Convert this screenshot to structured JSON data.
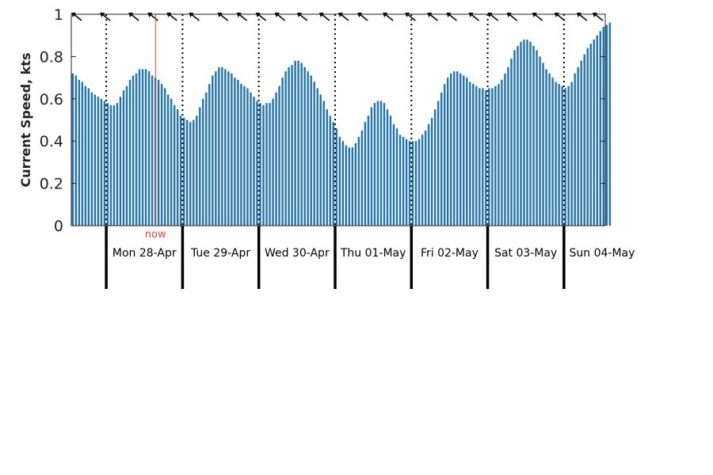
{
  "chart_data": {
    "type": "bar",
    "title": "",
    "xlabel": "",
    "ylabel": "Current Speed, kts",
    "ylim": [
      0,
      1
    ],
    "yticks": [
      0,
      0.2,
      0.4,
      0.6,
      0.8,
      1
    ],
    "ytick_labels": [
      "0",
      "0.2",
      "0.4",
      "0.6",
      "0.8",
      "1"
    ],
    "x_range_hours": [
      0,
      168
    ],
    "x_start_offset_days": 0,
    "bar_interval_hours": 1,
    "day_labels": [
      "Mon 28-Apr",
      "Tue 29-Apr",
      "Wed 30-Apr",
      "Thu 01-May",
      "Fri 02-May",
      "Sat 03-May",
      "Sun 04-May"
    ],
    "day_boundaries_hours": [
      11,
      35,
      59,
      83,
      107,
      131,
      155
    ],
    "now_label": "now",
    "now_hour": 26.5,
    "grid": false,
    "colors": {
      "bar": "#1f74b0",
      "now": "#e8423c",
      "axis": "#222222",
      "divider": "#000000"
    },
    "direction_arrows_icon": "arrow-icon",
    "arrow_hours": [
      2,
      11,
      20,
      26,
      32,
      39,
      48,
      54,
      60,
      66,
      73,
      80,
      86,
      92,
      100,
      107,
      114,
      120,
      127,
      133,
      139,
      147,
      154,
      161,
      166
    ],
    "values": [
      0.72,
      0.71,
      0.69,
      0.68,
      0.66,
      0.65,
      0.63,
      0.62,
      0.61,
      0.6,
      0.59,
      0.58,
      0.57,
      0.57,
      0.58,
      0.61,
      0.64,
      0.66,
      0.69,
      0.71,
      0.72,
      0.74,
      0.74,
      0.74,
      0.73,
      0.71,
      0.7,
      0.69,
      0.67,
      0.65,
      0.62,
      0.6,
      0.57,
      0.55,
      0.52,
      0.51,
      0.5,
      0.49,
      0.5,
      0.52,
      0.56,
      0.6,
      0.63,
      0.67,
      0.71,
      0.73,
      0.75,
      0.75,
      0.74,
      0.73,
      0.72,
      0.7,
      0.69,
      0.67,
      0.66,
      0.65,
      0.63,
      0.61,
      0.59,
      0.58,
      0.57,
      0.58,
      0.58,
      0.6,
      0.63,
      0.66,
      0.7,
      0.73,
      0.75,
      0.76,
      0.78,
      0.78,
      0.77,
      0.75,
      0.73,
      0.71,
      0.68,
      0.65,
      0.62,
      0.59,
      0.55,
      0.52,
      0.49,
      0.46,
      0.42,
      0.4,
      0.38,
      0.37,
      0.37,
      0.39,
      0.42,
      0.45,
      0.49,
      0.52,
      0.56,
      0.58,
      0.59,
      0.59,
      0.58,
      0.55,
      0.52,
      0.48,
      0.46,
      0.43,
      0.42,
      0.41,
      0.4,
      0.4,
      0.4,
      0.41,
      0.43,
      0.45,
      0.48,
      0.51,
      0.55,
      0.59,
      0.63,
      0.67,
      0.7,
      0.72,
      0.73,
      0.73,
      0.72,
      0.71,
      0.7,
      0.68,
      0.67,
      0.66,
      0.65,
      0.65,
      0.64,
      0.65,
      0.65,
      0.66,
      0.67,
      0.69,
      0.72,
      0.75,
      0.79,
      0.83,
      0.85,
      0.87,
      0.88,
      0.88,
      0.87,
      0.85,
      0.83,
      0.8,
      0.77,
      0.74,
      0.72,
      0.7,
      0.68,
      0.67,
      0.66,
      0.65,
      0.66,
      0.68,
      0.72,
      0.75,
      0.78,
      0.81,
      0.84,
      0.86,
      0.88,
      0.9,
      0.92,
      0.94,
      0.95,
      0.96
    ]
  }
}
